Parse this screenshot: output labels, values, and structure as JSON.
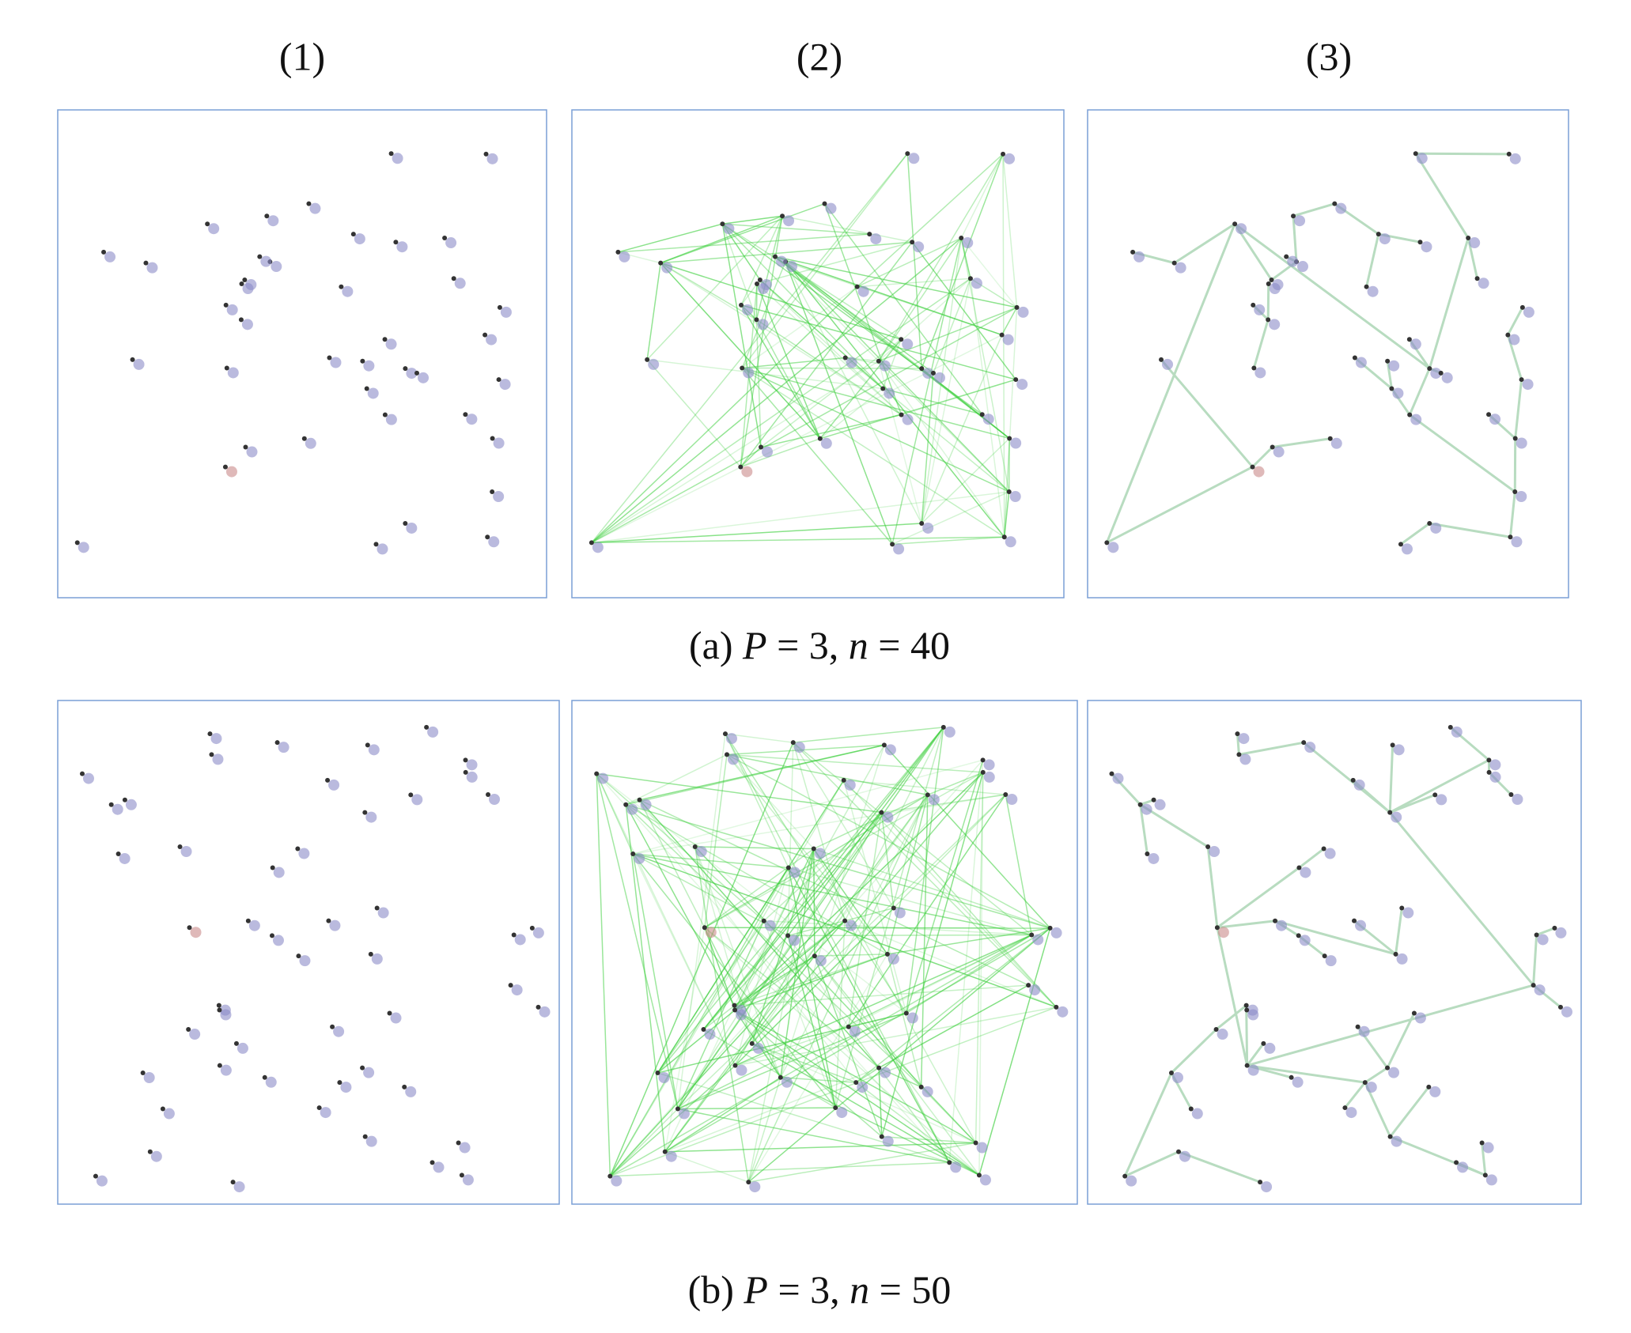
{
  "columns": [
    "(1)",
    "(2)",
    "(3)"
  ],
  "rows": [
    {
      "caption": [
        "(a) ",
        "P",
        " = 3, ",
        "n",
        " = 40"
      ]
    },
    {
      "caption": [
        "(b) ",
        "P",
        " = 3, ",
        "n",
        " = 50"
      ]
    }
  ]
}
